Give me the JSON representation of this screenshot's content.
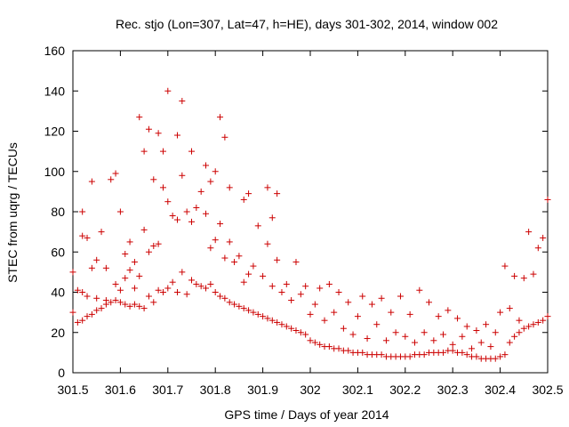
{
  "chart_data": {
    "type": "scatter",
    "title": "Rec. stjo (Lon=307, Lat=47, h=HE), days 301-302, 2014, window 002",
    "xlabel": "GPS time / Days of year 2014",
    "ylabel": "STEC from uqrg / TECUs",
    "xlim": [
      301.5,
      302.5
    ],
    "ylim": [
      0,
      160
    ],
    "xticks": [
      "301.5",
      "301.6",
      "301.7",
      "301.8",
      "301.9",
      "302",
      "302.1",
      "302.2",
      "302.3",
      "302.4",
      "302.5"
    ],
    "yticks": [
      "0",
      "20",
      "40",
      "60",
      "80",
      "100",
      "120",
      "140",
      "160"
    ],
    "marker": "+",
    "color": "#cc0000",
    "points": [
      [
        301.5,
        30
      ],
      [
        301.5,
        50
      ],
      [
        301.51,
        25
      ],
      [
        301.51,
        41
      ],
      [
        301.52,
        26
      ],
      [
        301.52,
        40
      ],
      [
        301.52,
        68
      ],
      [
        301.52,
        80
      ],
      [
        301.53,
        28
      ],
      [
        301.53,
        38
      ],
      [
        301.53,
        67
      ],
      [
        301.54,
        29
      ],
      [
        301.54,
        52
      ],
      [
        301.54,
        95
      ],
      [
        301.55,
        31
      ],
      [
        301.55,
        37
      ],
      [
        301.55,
        56
      ],
      [
        301.56,
        32
      ],
      [
        301.56,
        70
      ],
      [
        301.57,
        34
      ],
      [
        301.57,
        36
      ],
      [
        301.57,
        52
      ],
      [
        301.58,
        35
      ],
      [
        301.58,
        96
      ],
      [
        301.59,
        36
      ],
      [
        301.59,
        44
      ],
      [
        301.59,
        99
      ],
      [
        301.6,
        35
      ],
      [
        301.6,
        41
      ],
      [
        301.6,
        80
      ],
      [
        301.61,
        34
      ],
      [
        301.61,
        47
      ],
      [
        301.61,
        59
      ],
      [
        301.62,
        33
      ],
      [
        301.62,
        51
      ],
      [
        301.62,
        65
      ],
      [
        301.63,
        34
      ],
      [
        301.63,
        42
      ],
      [
        301.63,
        55
      ],
      [
        301.64,
        33
      ],
      [
        301.64,
        48
      ],
      [
        301.64,
        127
      ],
      [
        301.65,
        32
      ],
      [
        301.65,
        71
      ],
      [
        301.65,
        110
      ],
      [
        301.66,
        38
      ],
      [
        301.66,
        60
      ],
      [
        301.66,
        121
      ],
      [
        301.67,
        35
      ],
      [
        301.67,
        63
      ],
      [
        301.67,
        96
      ],
      [
        301.68,
        41
      ],
      [
        301.68,
        64
      ],
      [
        301.68,
        119
      ],
      [
        301.69,
        40
      ],
      [
        301.69,
        92
      ],
      [
        301.69,
        110
      ],
      [
        301.7,
        42
      ],
      [
        301.7,
        85
      ],
      [
        301.7,
        140
      ],
      [
        301.71,
        45
      ],
      [
        301.71,
        78
      ],
      [
        301.72,
        40
      ],
      [
        301.72,
        76
      ],
      [
        301.72,
        118
      ],
      [
        301.73,
        50
      ],
      [
        301.73,
        98
      ],
      [
        301.73,
        135
      ],
      [
        301.74,
        39
      ],
      [
        301.74,
        80
      ],
      [
        301.75,
        46
      ],
      [
        301.75,
        75
      ],
      [
        301.75,
        110
      ],
      [
        301.76,
        44
      ],
      [
        301.76,
        82
      ],
      [
        301.77,
        43
      ],
      [
        301.77,
        90
      ],
      [
        301.78,
        42
      ],
      [
        301.78,
        79
      ],
      [
        301.78,
        103
      ],
      [
        301.79,
        44
      ],
      [
        301.79,
        62
      ],
      [
        301.79,
        95
      ],
      [
        301.8,
        40
      ],
      [
        301.8,
        66
      ],
      [
        301.8,
        100
      ],
      [
        301.81,
        38
      ],
      [
        301.81,
        74
      ],
      [
        301.81,
        127
      ],
      [
        301.82,
        37
      ],
      [
        301.82,
        57
      ],
      [
        301.82,
        117
      ],
      [
        301.83,
        35
      ],
      [
        301.83,
        65
      ],
      [
        301.83,
        92
      ],
      [
        301.84,
        34
      ],
      [
        301.84,
        55
      ],
      [
        301.85,
        33
      ],
      [
        301.85,
        58
      ],
      [
        301.86,
        32
      ],
      [
        301.86,
        45
      ],
      [
        301.86,
        86
      ],
      [
        301.87,
        31
      ],
      [
        301.87,
        49
      ],
      [
        301.87,
        89
      ],
      [
        301.88,
        30
      ],
      [
        301.88,
        53
      ],
      [
        301.89,
        29
      ],
      [
        301.89,
        73
      ],
      [
        301.9,
        28
      ],
      [
        301.9,
        48
      ],
      [
        301.91,
        27
      ],
      [
        301.91,
        64
      ],
      [
        301.91,
        92
      ],
      [
        301.92,
        26
      ],
      [
        301.92,
        43
      ],
      [
        301.92,
        77
      ],
      [
        301.93,
        25
      ],
      [
        301.93,
        56
      ],
      [
        301.93,
        89
      ],
      [
        301.94,
        24
      ],
      [
        301.94,
        40
      ],
      [
        301.95,
        23
      ],
      [
        301.95,
        44
      ],
      [
        301.96,
        22
      ],
      [
        301.96,
        36
      ],
      [
        301.97,
        21
      ],
      [
        301.97,
        55
      ],
      [
        301.98,
        20
      ],
      [
        301.98,
        39
      ],
      [
        301.99,
        19
      ],
      [
        301.99,
        43
      ],
      [
        302.0,
        16
      ],
      [
        302.0,
        29
      ],
      [
        302.01,
        15
      ],
      [
        302.01,
        34
      ],
      [
        302.02,
        14
      ],
      [
        302.02,
        42
      ],
      [
        302.03,
        13
      ],
      [
        302.03,
        26
      ],
      [
        302.04,
        13
      ],
      [
        302.04,
        44
      ],
      [
        302.05,
        12
      ],
      [
        302.05,
        30
      ],
      [
        302.06,
        12
      ],
      [
        302.06,
        40
      ],
      [
        302.07,
        11
      ],
      [
        302.07,
        22
      ],
      [
        302.08,
        11
      ],
      [
        302.08,
        35
      ],
      [
        302.09,
        10
      ],
      [
        302.09,
        19
      ],
      [
        302.1,
        10
      ],
      [
        302.1,
        28
      ],
      [
        302.11,
        10
      ],
      [
        302.11,
        38
      ],
      [
        302.12,
        9
      ],
      [
        302.12,
        17
      ],
      [
        302.13,
        9
      ],
      [
        302.13,
        34
      ],
      [
        302.14,
        9
      ],
      [
        302.14,
        24
      ],
      [
        302.15,
        9
      ],
      [
        302.15,
        37
      ],
      [
        302.16,
        8
      ],
      [
        302.16,
        16
      ],
      [
        302.17,
        8
      ],
      [
        302.17,
        30
      ],
      [
        302.18,
        8
      ],
      [
        302.18,
        20
      ],
      [
        302.19,
        8
      ],
      [
        302.19,
        38
      ],
      [
        302.2,
        8
      ],
      [
        302.2,
        18
      ],
      [
        302.21,
        8
      ],
      [
        302.21,
        29
      ],
      [
        302.22,
        9
      ],
      [
        302.22,
        15
      ],
      [
        302.23,
        9
      ],
      [
        302.23,
        41
      ],
      [
        302.24,
        9
      ],
      [
        302.24,
        20
      ],
      [
        302.25,
        10
      ],
      [
        302.25,
        35
      ],
      [
        302.26,
        10
      ],
      [
        302.26,
        16
      ],
      [
        302.27,
        10
      ],
      [
        302.27,
        28
      ],
      [
        302.28,
        10
      ],
      [
        302.28,
        19
      ],
      [
        302.29,
        11
      ],
      [
        302.29,
        31
      ],
      [
        302.3,
        11
      ],
      [
        302.3,
        14
      ],
      [
        302.31,
        10
      ],
      [
        302.31,
        27
      ],
      [
        302.32,
        10
      ],
      [
        302.32,
        18
      ],
      [
        302.33,
        9
      ],
      [
        302.33,
        23
      ],
      [
        302.34,
        8
      ],
      [
        302.34,
        12
      ],
      [
        302.35,
        8
      ],
      [
        302.35,
        21
      ],
      [
        302.36,
        7
      ],
      [
        302.36,
        15
      ],
      [
        302.37,
        7
      ],
      [
        302.37,
        24
      ],
      [
        302.38,
        7
      ],
      [
        302.38,
        13
      ],
      [
        302.39,
        7
      ],
      [
        302.39,
        20
      ],
      [
        302.4,
        8
      ],
      [
        302.4,
        30
      ],
      [
        302.41,
        9
      ],
      [
        302.41,
        53
      ],
      [
        302.42,
        15
      ],
      [
        302.42,
        32
      ],
      [
        302.43,
        18
      ],
      [
        302.43,
        48
      ],
      [
        302.44,
        20
      ],
      [
        302.44,
        26
      ],
      [
        302.45,
        22
      ],
      [
        302.45,
        47
      ],
      [
        302.46,
        23
      ],
      [
        302.46,
        70
      ],
      [
        302.47,
        24
      ],
      [
        302.47,
        49
      ],
      [
        302.48,
        25
      ],
      [
        302.48,
        62
      ],
      [
        302.49,
        26
      ],
      [
        302.49,
        67
      ],
      [
        302.5,
        28
      ],
      [
        302.5,
        86
      ]
    ]
  }
}
